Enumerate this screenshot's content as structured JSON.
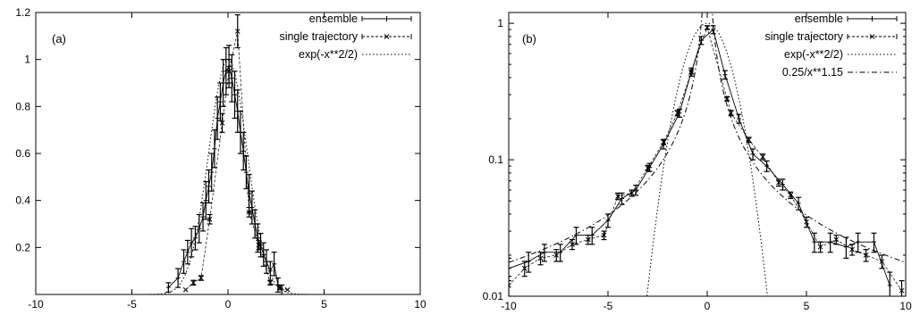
{
  "chart_data": [
    {
      "type": "scatter",
      "panel_label": "(a)",
      "xlim": [
        -10,
        10
      ],
      "ylim": [
        0,
        1.2
      ],
      "yscale": "linear",
      "xticks": [
        "-10",
        "-5",
        "0",
        "5",
        "10"
      ],
      "yticks": [
        {
          "value": 0.2,
          "label": "0.2"
        },
        {
          "value": 0.4,
          "label": "0.4"
        },
        {
          "value": 0.6,
          "label": "0.6"
        },
        {
          "value": 0.8,
          "label": "0.8"
        },
        {
          "value": 1.0,
          "label": "1"
        },
        {
          "value": 1.2,
          "label": "1.2"
        }
      ],
      "legend_position": "top-right",
      "series": [
        {
          "name": "ensemble",
          "style": "errorbars-plus",
          "points": [
            [
              -3.1,
              0.03,
              0.02
            ],
            [
              -2.6,
              0.07,
              0.04
            ],
            [
              -2.3,
              0.14,
              0.05
            ],
            [
              -2.1,
              0.18,
              0.05
            ],
            [
              -1.9,
              0.22,
              0.06
            ],
            [
              -1.7,
              0.24,
              0.05
            ],
            [
              -1.5,
              0.28,
              0.06
            ],
            [
              -1.3,
              0.33,
              0.06
            ],
            [
              -1.15,
              0.4,
              0.08
            ],
            [
              -1.0,
              0.46,
              0.07
            ],
            [
              -0.85,
              0.52,
              0.08
            ],
            [
              -0.7,
              0.62,
              0.08
            ],
            [
              -0.55,
              0.75,
              0.09
            ],
            [
              -0.4,
              0.82,
              0.08
            ],
            [
              -0.25,
              0.9,
              0.1
            ],
            [
              -0.1,
              0.95,
              0.1
            ],
            [
              0.05,
              0.97,
              0.09
            ],
            [
              0.2,
              0.92,
              0.1
            ],
            [
              0.35,
              0.85,
              0.1
            ],
            [
              0.5,
              0.78,
              0.09
            ],
            [
              0.65,
              0.69,
              0.09
            ],
            [
              0.8,
              0.61,
              0.08
            ],
            [
              0.95,
              0.52,
              0.07
            ],
            [
              1.1,
              0.43,
              0.08
            ],
            [
              1.25,
              0.37,
              0.07
            ],
            [
              1.4,
              0.3,
              0.06
            ],
            [
              1.55,
              0.24,
              0.06
            ],
            [
              1.7,
              0.21,
              0.05
            ],
            [
              1.85,
              0.17,
              0.05
            ],
            [
              2.0,
              0.14,
              0.05
            ],
            [
              2.2,
              0.1,
              0.04
            ],
            [
              2.4,
              0.13,
              0.05
            ],
            [
              2.6,
              0.04,
              0.03
            ],
            [
              2.8,
              0.02,
              0.02
            ]
          ]
        },
        {
          "name": "single trajectory",
          "style": "errorbars-cross",
          "points": [
            [
              -2.2,
              0.02,
              0.0
            ],
            [
              -1.8,
              0.05,
              0.01
            ],
            [
              -1.4,
              0.07,
              0.01
            ],
            [
              -0.95,
              0.32,
              0.02
            ],
            [
              -0.3,
              0.73,
              0.04
            ],
            [
              0.05,
              0.95,
              0.05
            ],
            [
              0.5,
              1.12,
              0.07
            ],
            [
              1.1,
              0.35,
              0.02
            ],
            [
              1.6,
              0.21,
              0.02
            ],
            [
              2.2,
              0.05,
              0.01
            ],
            [
              2.7,
              0.03,
              0.01
            ],
            [
              3.1,
              0.02,
              0.0
            ]
          ]
        },
        {
          "name": "exp(-x**2/2)",
          "style": "dotted-curve",
          "function": "exp(-x**2/2)"
        }
      ]
    },
    {
      "type": "scatter",
      "panel_label": "(b)",
      "xlim": [
        -10,
        10
      ],
      "ylim": [
        0.01,
        1.2
      ],
      "yscale": "log",
      "xticks": [
        "-10",
        "-5",
        "0",
        "5",
        "10"
      ],
      "yticks": [
        {
          "value": 0.01,
          "label": "0.01"
        },
        {
          "value": 0.1,
          "label": "0.1"
        },
        {
          "value": 1,
          "label": "1"
        }
      ],
      "legend_position": "top-right",
      "series": [
        {
          "name": "ensemble",
          "style": "errorbars-plus",
          "points": [
            [
              -10.0,
              0.016,
              0.003
            ],
            [
              -9.0,
              0.018,
              0.003
            ],
            [
              -8.2,
              0.021,
              0.003
            ],
            [
              -7.4,
              0.021,
              0.003
            ],
            [
              -6.6,
              0.028,
              0.004
            ],
            [
              -5.8,
              0.028,
              0.004
            ],
            [
              -5.0,
              0.036,
              0.004
            ],
            [
              -4.3,
              0.052,
              0.005
            ],
            [
              -3.6,
              0.06,
              0.005
            ],
            [
              -2.9,
              0.088,
              0.006
            ],
            [
              -2.2,
              0.13,
              0.01
            ],
            [
              -1.4,
              0.22,
              0.015
            ],
            [
              -0.8,
              0.44,
              0.03
            ],
            [
              -0.3,
              0.75,
              0.05
            ],
            [
              0.3,
              0.9,
              0.06
            ],
            [
              0.9,
              0.42,
              0.03
            ],
            [
              1.6,
              0.2,
              0.015
            ],
            [
              2.3,
              0.11,
              0.01
            ],
            [
              3.0,
              0.09,
              0.008
            ],
            [
              3.8,
              0.066,
              0.006
            ],
            [
              4.6,
              0.048,
              0.005
            ],
            [
              5.4,
              0.025,
              0.004
            ],
            [
              6.2,
              0.025,
              0.004
            ],
            [
              7.0,
              0.023,
              0.004
            ],
            [
              7.6,
              0.025,
              0.004
            ],
            [
              8.4,
              0.025,
              0.004
            ],
            [
              9.2,
              0.012,
              0.003
            ]
          ]
        },
        {
          "name": "single trajectory",
          "style": "errorbars-cross",
          "points": [
            [
              -10.0,
              0.012,
              0.002
            ],
            [
              -9.2,
              0.016,
              0.002
            ],
            [
              -8.4,
              0.019,
              0.002
            ],
            [
              -7.6,
              0.02,
              0.002
            ],
            [
              -6.8,
              0.024,
              0.002
            ],
            [
              -6.0,
              0.026,
              0.002
            ],
            [
              -5.2,
              0.028,
              0.002
            ],
            [
              -4.5,
              0.054,
              0.003
            ],
            [
              -3.8,
              0.057,
              0.003
            ],
            [
              -3.0,
              0.087,
              0.004
            ],
            [
              -2.2,
              0.135,
              0.006
            ],
            [
              -1.5,
              0.22,
              0.01
            ],
            [
              -0.8,
              0.44,
              0.015
            ],
            [
              0.0,
              0.93,
              0.03
            ],
            [
              1.0,
              0.28,
              0.01
            ],
            [
              1.2,
              0.22,
              0.01
            ],
            [
              2.1,
              0.14,
              0.006
            ],
            [
              2.8,
              0.105,
              0.005
            ],
            [
              3.6,
              0.068,
              0.004
            ],
            [
              4.2,
              0.055,
              0.003
            ],
            [
              5.0,
              0.035,
              0.003
            ],
            [
              5.7,
              0.023,
              0.002
            ],
            [
              6.5,
              0.026,
              0.002
            ],
            [
              7.3,
              0.022,
              0.002
            ],
            [
              8.0,
              0.02,
              0.002
            ],
            [
              8.8,
              0.018,
              0.002
            ],
            [
              9.8,
              0.011,
              0.002
            ]
          ]
        },
        {
          "name": "exp(-x**2/2)",
          "style": "dotted-curve",
          "function": "exp(-x**2/2)"
        },
        {
          "name": "0.25/x**1.15",
          "style": "dashdot-curve",
          "function": "0.25/x**1.15"
        }
      ]
    }
  ]
}
